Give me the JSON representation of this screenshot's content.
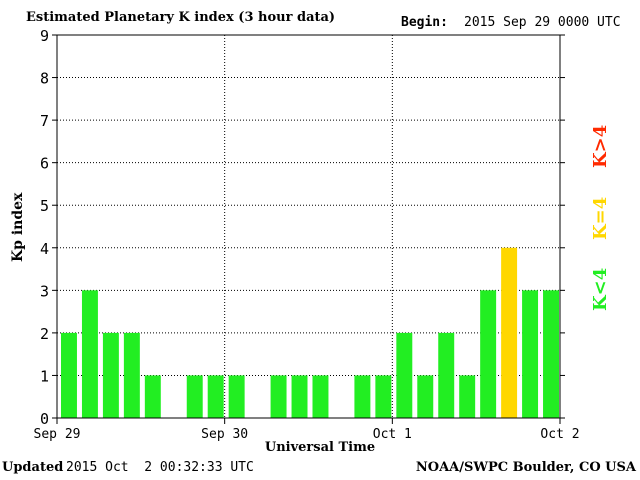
{
  "header": {
    "title": "Estimated Planetary K index (3 hour data)",
    "begin_label": "Begin:",
    "begin_value": "2015 Sep 29 0000 UTC"
  },
  "footer": {
    "updated_label": "Updated",
    "updated_value": "2015 Oct  2 00:32:33 UTC",
    "credit": "NOAA/SWPC Boulder, CO USA"
  },
  "legend": {
    "low": {
      "label": "K<4",
      "color": "#22ee22"
    },
    "mid": {
      "label": "K=4",
      "color": "#ffd700"
    },
    "high": {
      "label": "K>4",
      "color": "#ff2a00"
    }
  },
  "chart_data": {
    "type": "bar",
    "title": "Estimated Planetary K index (3 hour data)",
    "xlabel": "Universal Time",
    "ylabel": "Kp index",
    "ylim": [
      0,
      9
    ],
    "yticks": [
      "0",
      "1",
      "2",
      "3",
      "4",
      "5",
      "6",
      "7",
      "8",
      "9"
    ],
    "xticks": [
      "Sep 29",
      "Sep 30",
      "Oct 1",
      "Oct 2"
    ],
    "interval_hours": 3,
    "grid": true,
    "values": [
      2,
      3,
      2,
      2,
      1,
      0,
      1,
      1,
      1,
      0,
      1,
      1,
      1,
      0,
      1,
      1,
      2,
      1,
      2,
      1,
      3,
      4,
      3,
      3
    ],
    "colors": {
      "below_4": "#22ee22",
      "equal_4": "#ffd700",
      "above_4": "#ff2a00"
    }
  }
}
